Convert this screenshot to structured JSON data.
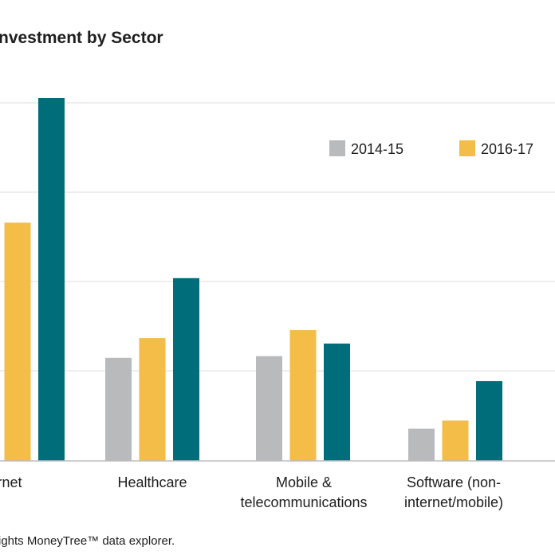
{
  "chart_data": {
    "type": "bar",
    "title": "nvestment by Sector",
    "categories": [
      "rnet",
      "Healthcare",
      "Mobile &\ntelecommunications",
      "Software (non-\ninternet/mobile)"
    ],
    "series": [
      {
        "name": "2014-15",
        "color": "#b9babc",
        "values": [
          null,
          1.15,
          1.17,
          0.36
        ]
      },
      {
        "name": "2016-17",
        "color": "#f3bd47",
        "values": [
          2.66,
          1.37,
          1.46,
          0.45
        ]
      },
      {
        "name": "",
        "color": "#006e7a",
        "values": [
          4.05,
          2.04,
          1.31,
          0.89
        ]
      }
    ],
    "ylim": [
      0,
      4.05
    ],
    "grid": true,
    "legend": "top-right",
    "source": "ights MoneyTree™ data explorer."
  }
}
